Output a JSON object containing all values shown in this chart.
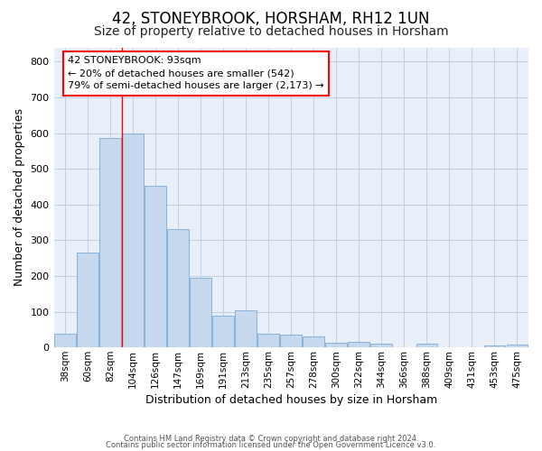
{
  "title": "42, STONEYBROOK, HORSHAM, RH12 1UN",
  "subtitle": "Size of property relative to detached houses in Horsham",
  "xlabel": "Distribution of detached houses by size in Horsham",
  "ylabel": "Number of detached properties",
  "bar_color": "#c5d8ee",
  "bar_edge_color": "#7baad4",
  "categories": [
    "38sqm",
    "60sqm",
    "82sqm",
    "104sqm",
    "126sqm",
    "147sqm",
    "169sqm",
    "191sqm",
    "213sqm",
    "235sqm",
    "257sqm",
    "278sqm",
    "300sqm",
    "322sqm",
    "344sqm",
    "366sqm",
    "388sqm",
    "409sqm",
    "431sqm",
    "453sqm",
    "475sqm"
  ],
  "values": [
    38,
    265,
    585,
    600,
    453,
    330,
    196,
    90,
    103,
    38,
    37,
    30,
    13,
    15,
    10,
    0,
    10,
    0,
    0,
    5,
    8
  ],
  "ylim": [
    0,
    840
  ],
  "yticks": [
    0,
    100,
    200,
    300,
    400,
    500,
    600,
    700,
    800
  ],
  "property_line_x": 2.5,
  "property_line_label": "42 STONEYBROOK: 93sqm",
  "annotation_line1": "← 20% of detached houses are smaller (542)",
  "annotation_line2": "79% of semi-detached houses are larger (2,173) →",
  "footer1": "Contains HM Land Registry data © Crown copyright and database right 2024.",
  "footer2": "Contains public sector information licensed under the Open Government Licence v3.0.",
  "background_color": "#ffffff",
  "plot_bg_color": "#e8eff8",
  "grid_color": "#c0cfe0",
  "title_fontsize": 12,
  "subtitle_fontsize": 10,
  "tick_fontsize": 7.5,
  "ylabel_fontsize": 9,
  "xlabel_fontsize": 9,
  "annotation_fontsize": 8,
  "footer_fontsize": 6
}
